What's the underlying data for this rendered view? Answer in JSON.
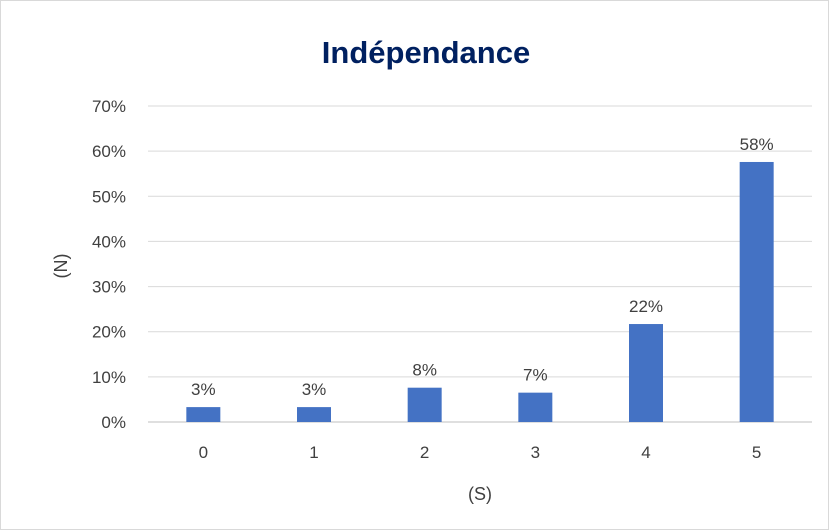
{
  "chart_data": {
    "type": "bar",
    "title": "Indépendance",
    "xlabel": "(S)",
    "ylabel": "(N)",
    "categories": [
      "0",
      "1",
      "2",
      "3",
      "4",
      "5"
    ],
    "values": [
      3.3,
      3.3,
      7.6,
      6.5,
      21.7,
      57.6
    ],
    "data_labels": [
      "3%",
      "3%",
      "8%",
      "7%",
      "22%",
      "58%"
    ],
    "ylim": [
      0,
      70
    ],
    "yticks": [
      0,
      10,
      20,
      30,
      40,
      50,
      60,
      70
    ],
    "ytick_labels": [
      "0%",
      "10%",
      "20%",
      "30%",
      "40%",
      "50%",
      "60%",
      "70%"
    ],
    "grid": true,
    "legend": "none",
    "bar_color": "#4472C4"
  }
}
